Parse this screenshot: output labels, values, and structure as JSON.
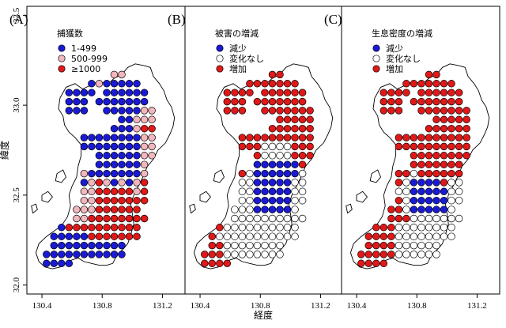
{
  "axes": {
    "xlabel": "経度",
    "ylabel": "緯度",
    "xticks": [
      130.4,
      130.8,
      131.2
    ],
    "yticks": [
      32.0,
      32.5,
      33.0,
      33.5
    ],
    "xlim": [
      130.3,
      131.35
    ],
    "ylim": [
      31.95,
      33.55
    ]
  },
  "colors": {
    "blue": "#1a1ad6",
    "pink": "#f2b6bd",
    "red": "#e01818",
    "white": "#ffffff",
    "outline": "#000000"
  },
  "chart_data": [
    {
      "type": "scatter",
      "panel": "(A)",
      "legend": {
        "title": "捕獲数",
        "placement": "top-center",
        "entries": [
          {
            "label": "1-499",
            "color": "#1a1ad6"
          },
          {
            "label": "500-999",
            "color": "#f2b6bd"
          },
          {
            "label": "≥1000",
            "color": "#e01818"
          }
        ]
      },
      "grid": {
        "lon0": 130.38,
        "dlon": 0.05,
        "lat0": 32.12,
        "dlat": 0.05
      },
      "rows": [
        {
          "lat": 33.17,
          "cells": "..........pp..."
        },
        {
          "lat": 33.12,
          "cells": ".......bpbbbbb.."
        },
        {
          "lat": 33.07,
          "cells": "....bbbb.bbbbbb."
        },
        {
          "lat": 33.02,
          "cells": "....bbb.bbbbbbb."
        },
        {
          "lat": 32.97,
          "cells": "....bbb..bbbbbpp"
        },
        {
          "lat": 32.92,
          "cells": "...........bbppp"
        },
        {
          "lat": 32.87,
          "cells": "..........bbbprr"
        },
        {
          "lat": 32.82,
          "cells": "......bbbbbbbbpp"
        },
        {
          "lat": 32.77,
          "cells": "......bbbbbbbbpp"
        },
        {
          "lat": 32.72,
          "cells": "........bbbbbbpp"
        },
        {
          "lat": 32.67,
          "cells": "........bbbbbbp."
        },
        {
          "lat": 32.62,
          "cells": "......pbbbbbbbp."
        },
        {
          "lat": 32.57,
          "cells": "......bprpbpbpr."
        },
        {
          "lat": 32.52,
          "cells": "......pprrrrrpr."
        },
        {
          "lat": 32.47,
          "cells": "......pprrrrrrr."
        },
        {
          "lat": 32.42,
          "cells": ".....ppprrrrrr.."
        },
        {
          "lat": 32.37,
          "cells": ".....pprrrrrrrr."
        },
        {
          "lat": 32.32,
          "cells": "...brrrrrrrrrr.."
        },
        {
          "lat": 32.27,
          "cells": "..bbbbbrrrrrrr.."
        },
        {
          "lat": 32.22,
          "cells": "..bbbbbbbbbb...."
        },
        {
          "lat": 32.17,
          "cells": ".bbbbbbbbbbb...."
        },
        {
          "lat": 32.12,
          "cells": ".bbbb..........."
        }
      ]
    },
    {
      "type": "scatter",
      "panel": "(B)",
      "legend": {
        "title": "被害の増減",
        "placement": "top-center",
        "entries": [
          {
            "label": "減少",
            "color": "#1a1ad6"
          },
          {
            "label": "変化なし",
            "color": "#ffffff"
          },
          {
            "label": "増加",
            "color": "#e01818"
          }
        ]
      },
      "grid": {
        "lon0": 130.38,
        "dlon": 0.05,
        "lat0": 32.12,
        "dlat": 0.05
      },
      "rows": [
        {
          "lat": 33.17,
          "cells": "..........rr..."
        },
        {
          "lat": 33.12,
          "cells": ".......rrrrrrr.."
        },
        {
          "lat": 33.07,
          "cells": "....rrrr.rrrrrr."
        },
        {
          "lat": 33.02,
          "cells": "....rrr.rrrrrrr."
        },
        {
          "lat": 32.97,
          "cells": "....rrr..rrrrrrr"
        },
        {
          "lat": 32.92,
          "cells": "...........rrrrr"
        },
        {
          "lat": 32.87,
          "cells": "..........rrrrrr"
        },
        {
          "lat": 32.82,
          "cells": "......rrrrrrrrrr"
        },
        {
          "lat": 32.77,
          "cells": "......rrrwwwwrrr"
        },
        {
          "lat": 32.72,
          "cells": "........rwwwwrrr"
        },
        {
          "lat": 32.67,
          "cells": "........bbbbbbr."
        },
        {
          "lat": 32.62,
          "cells": "......rwbbbbbbw."
        },
        {
          "lat": 32.57,
          "cells": "......wwbbbbbww."
        },
        {
          "lat": 32.52,
          "cells": "......wwbbbbbww."
        },
        {
          "lat": 32.47,
          "cells": "......wwbbbbbww."
        },
        {
          "lat": 32.42,
          "cells": ".....wwwbbbbbw.."
        },
        {
          "lat": 32.37,
          "cells": ".....wwwwwwwwww."
        },
        {
          "lat": 32.32,
          "cells": "...rwwwwwwwwww.."
        },
        {
          "lat": 32.27,
          "cells": "..rwwwwwwwwwww.."
        },
        {
          "lat": 32.22,
          "cells": "..rrwwwwwwww...."
        },
        {
          "lat": 32.17,
          "cells": ".rrrwwwwwwww...."
        },
        {
          "lat": 32.12,
          "cells": ".rrrr..........."
        }
      ]
    },
    {
      "type": "scatter",
      "panel": "(C)",
      "legend": {
        "title": "生息密度の増減",
        "placement": "top-center",
        "entries": [
          {
            "label": "減少",
            "color": "#1a1ad6"
          },
          {
            "label": "変化なし",
            "color": "#ffffff"
          },
          {
            "label": "増加",
            "color": "#e01818"
          }
        ]
      },
      "grid": {
        "lon0": 130.38,
        "dlon": 0.05,
        "lat0": 32.12,
        "dlat": 0.05
      },
      "rows": [
        {
          "lat": 33.17,
          "cells": "..........rr..."
        },
        {
          "lat": 33.12,
          "cells": ".......rrrrrrr.."
        },
        {
          "lat": 33.07,
          "cells": "....rrrr.rrrrrr."
        },
        {
          "lat": 33.02,
          "cells": "....rrr.rrrrrrr."
        },
        {
          "lat": 32.97,
          "cells": "....rrr..rrrrrrr"
        },
        {
          "lat": 32.92,
          "cells": "...........rrrrr"
        },
        {
          "lat": 32.87,
          "cells": "..........rrrrrr"
        },
        {
          "lat": 32.82,
          "cells": "......rrrrrrrrrr"
        },
        {
          "lat": 32.77,
          "cells": "......rrrrrrrrrr"
        },
        {
          "lat": 32.72,
          "cells": "........rrrrrrrr"
        },
        {
          "lat": 32.67,
          "cells": "........rrrrrrr."
        },
        {
          "lat": 32.62,
          "cells": "......rrwrrrrrr."
        },
        {
          "lat": 32.57,
          "cells": "......rwbbbbrww."
        },
        {
          "lat": 32.52,
          "cells": "......wwbbbbbww."
        },
        {
          "lat": 32.47,
          "cells": "......rwbbbbbww."
        },
        {
          "lat": 32.42,
          "cells": ".....rrwbbbbbw.."
        },
        {
          "lat": 32.37,
          "cells": ".....rrrwwwwwww."
        },
        {
          "lat": 32.32,
          "cells": "...rrrwwwwwwww.."
        },
        {
          "lat": 32.27,
          "cells": "..rrrrwwwwwwww.."
        },
        {
          "lat": 32.22,
          "cells": "..rrrrwwwwww...."
        },
        {
          "lat": 32.17,
          "cells": ".rrrrrwwwwww...."
        },
        {
          "lat": 32.12,
          "cells": ".rrrr..........."
        }
      ]
    }
  ]
}
